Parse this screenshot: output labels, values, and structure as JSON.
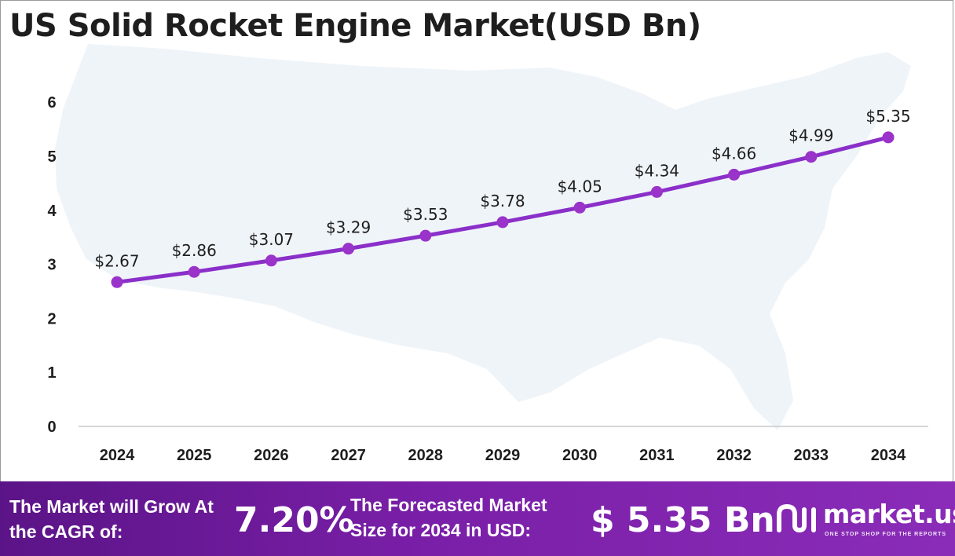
{
  "title": "US Solid Rocket Engine Market(USD Bn)",
  "colors": {
    "line": "#8b2fc9",
    "marker": "#9a33c9",
    "footer": "#6a1b9a",
    "map": "#eef3f9"
  },
  "chart_data": {
    "type": "line",
    "title": "US Solid Rocket Engine Market(USD Bn)",
    "xlabel": "",
    "ylabel": "",
    "categories": [
      "2024",
      "2025",
      "2026",
      "2027",
      "2028",
      "2029",
      "2030",
      "2031",
      "2032",
      "2033",
      "2034"
    ],
    "values": [
      2.67,
      2.86,
      3.07,
      3.29,
      3.53,
      3.78,
      4.05,
      4.34,
      4.66,
      4.99,
      5.35
    ],
    "data_labels": [
      "$2.67",
      "$2.86",
      "$3.07",
      "$3.29",
      "$3.53",
      "$3.78",
      "$4.05",
      "$4.34",
      "$4.66",
      "$4.99",
      "$5.35"
    ],
    "y_ticks": [
      "0",
      "1",
      "2",
      "3",
      "4",
      "5",
      "6"
    ],
    "ylim": [
      0,
      6
    ],
    "grid": false,
    "legend": "none"
  },
  "footer": {
    "cagr_label": "The Market will Grow At the CAGR of:",
    "cagr_value": "7.20%",
    "forecast_label": "The Forecasted Market Size for 2034 in USD:",
    "forecast_value": "$ 5.35 Bn"
  },
  "brand": {
    "name": "market.us",
    "tagline": "ONE STOP SHOP FOR THE REPORTS",
    "logo_icon": "market-us-logo-icon"
  }
}
